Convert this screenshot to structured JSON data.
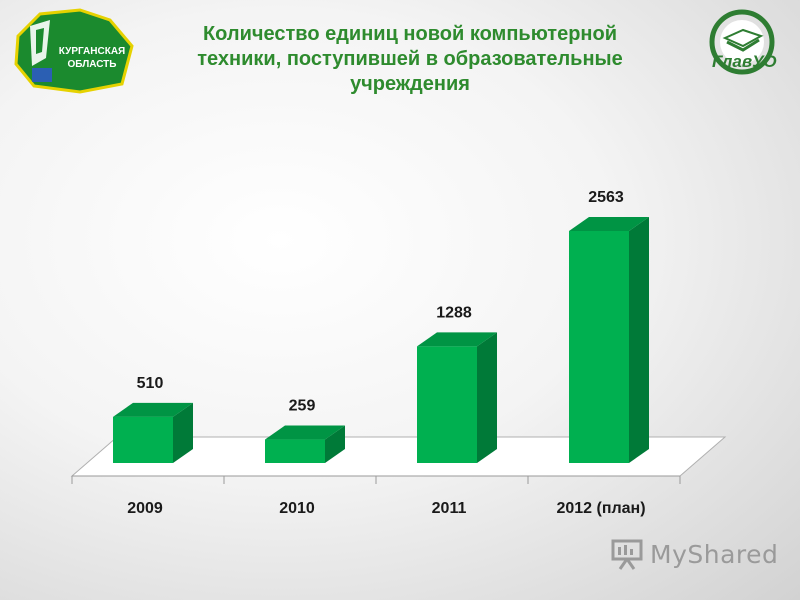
{
  "title": "Количество единиц новой компьютерной техники, поступившей в образовательные учреждения",
  "logo_left_text": "КУРГАНСКАЯ ОБЛАСТЬ",
  "logo_right_text": "ГлавУО",
  "watermark": "MyShared",
  "colors": {
    "bar_front": "#00b050",
    "bar_side": "#007a38",
    "bar_top": "#009444",
    "title": "#2e8b2e"
  },
  "chart_data": {
    "type": "bar",
    "categories": [
      "2009",
      "2010",
      "2011",
      "2012 (план)"
    ],
    "values": [
      510,
      259,
      1288,
      2563
    ],
    "data_labels": [
      "510",
      "259",
      "1288",
      "2563"
    ],
    "ylim": [
      0,
      2563
    ]
  }
}
